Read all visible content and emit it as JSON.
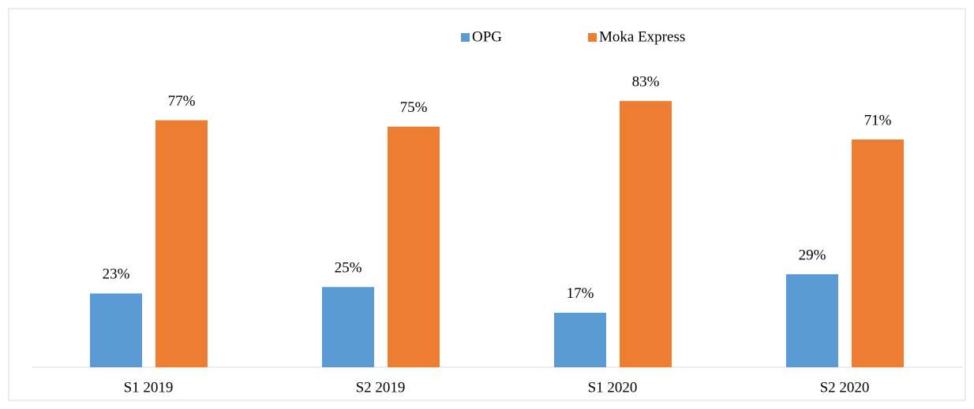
{
  "chart_data": {
    "type": "bar",
    "categories": [
      "S1 2019",
      "S2 2019",
      "S1 2020",
      "S2 2020"
    ],
    "series": [
      {
        "name": "OPG",
        "color": "#5b9bd5",
        "values": [
          23,
          25,
          17,
          29
        ],
        "value_labels": [
          "23%",
          "25%",
          "17%",
          "29%"
        ]
      },
      {
        "name": "Moka Express",
        "color": "#ed7d31",
        "values": [
          77,
          75,
          83,
          71
        ],
        "value_labels": [
          "77%",
          "75%",
          "83%",
          "71%"
        ]
      }
    ],
    "ylim": [
      0,
      100
    ],
    "legend": "top"
  }
}
